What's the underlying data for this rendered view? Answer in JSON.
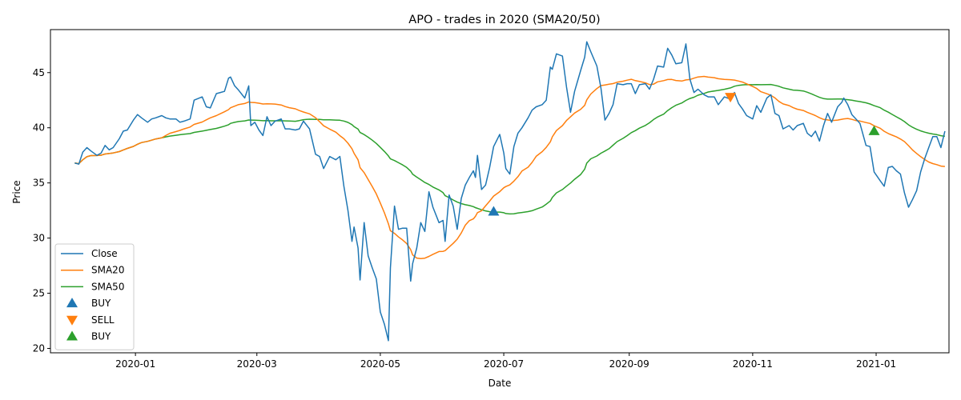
{
  "chart_data": {
    "type": "line",
    "title": "APO - trades in 2020 (SMA20/50)",
    "xlabel": "Date",
    "ylabel": "Price",
    "x_range": [
      "2019-11-20",
      "2021-02-06"
    ],
    "ylim": [
      19.6,
      48.9
    ],
    "x_ticks": [
      {
        "date": "2020-01-01",
        "label": "2020-01"
      },
      {
        "date": "2020-03-01",
        "label": "2020-03"
      },
      {
        "date": "2020-05-01",
        "label": "2020-05"
      },
      {
        "date": "2020-07-01",
        "label": "2020-07"
      },
      {
        "date": "2020-09-01",
        "label": "2020-09"
      },
      {
        "date": "2020-11-01",
        "label": "2020-11"
      },
      {
        "date": "2021-01-01",
        "label": "2021-01"
      }
    ],
    "y_ticks": [
      20,
      25,
      30,
      35,
      40,
      45
    ],
    "grid": false,
    "legend_position": "lower-left",
    "series": [
      {
        "name": "Close",
        "color": "#1f77b4",
        "points": [
          [
            "2019-12-02",
            36.8
          ],
          [
            "2019-12-04",
            36.7
          ],
          [
            "2019-12-06",
            37.8
          ],
          [
            "2019-12-08",
            38.2
          ],
          [
            "2019-12-10",
            37.9
          ],
          [
            "2019-12-13",
            37.5
          ],
          [
            "2019-12-15",
            37.7
          ],
          [
            "2019-12-17",
            38.4
          ],
          [
            "2019-12-19",
            38.0
          ],
          [
            "2019-12-21",
            38.2
          ],
          [
            "2019-12-24",
            39.0
          ],
          [
            "2019-12-26",
            39.7
          ],
          [
            "2019-12-28",
            39.8
          ],
          [
            "2019-12-31",
            40.7
          ],
          [
            "2020-01-02",
            41.2
          ],
          [
            "2020-01-04",
            40.9
          ],
          [
            "2020-01-07",
            40.5
          ],
          [
            "2020-01-09",
            40.8
          ],
          [
            "2020-01-11",
            40.9
          ],
          [
            "2020-01-14",
            41.1
          ],
          [
            "2020-01-16",
            40.9
          ],
          [
            "2020-01-18",
            40.8
          ],
          [
            "2020-01-21",
            40.8
          ],
          [
            "2020-01-23",
            40.5
          ],
          [
            "2020-01-25",
            40.6
          ],
          [
            "2020-01-28",
            40.8
          ],
          [
            "2020-01-30",
            42.5
          ],
          [
            "2020-02-03",
            42.8
          ],
          [
            "2020-02-05",
            41.9
          ],
          [
            "2020-02-07",
            41.8
          ],
          [
            "2020-02-10",
            43.1
          ],
          [
            "2020-02-12",
            43.2
          ],
          [
            "2020-02-14",
            43.3
          ],
          [
            "2020-02-16",
            44.5
          ],
          [
            "2020-02-17",
            44.6
          ],
          [
            "2020-02-19",
            43.8
          ],
          [
            "2020-02-21",
            43.4
          ],
          [
            "2020-02-24",
            42.7
          ],
          [
            "2020-02-26",
            43.8
          ],
          [
            "2020-02-27",
            40.2
          ],
          [
            "2020-02-29",
            40.5
          ],
          [
            "2020-03-02",
            39.8
          ],
          [
            "2020-03-04",
            39.3
          ],
          [
            "2020-03-06",
            41.0
          ],
          [
            "2020-03-08",
            40.2
          ],
          [
            "2020-03-10",
            40.6
          ],
          [
            "2020-03-13",
            40.8
          ],
          [
            "2020-03-15",
            39.9
          ],
          [
            "2020-03-17",
            39.9
          ],
          [
            "2020-03-20",
            39.8
          ],
          [
            "2020-03-22",
            39.9
          ],
          [
            "2020-03-24",
            40.6
          ],
          [
            "2020-03-27",
            39.9
          ],
          [
            "2020-03-30",
            37.6
          ],
          [
            "2020-04-01",
            37.4
          ],
          [
            "2020-04-03",
            36.3
          ],
          [
            "2020-04-06",
            37.4
          ],
          [
            "2020-04-09",
            37.1
          ],
          [
            "2020-04-11",
            37.4
          ],
          [
            "2020-04-13",
            34.7
          ],
          [
            "2020-04-15",
            32.5
          ],
          [
            "2020-04-17",
            29.7
          ],
          [
            "2020-04-18",
            31.0
          ],
          [
            "2020-04-20",
            29.1
          ],
          [
            "2020-04-21",
            26.2
          ],
          [
            "2020-04-23",
            31.4
          ],
          [
            "2020-04-25",
            28.4
          ],
          [
            "2020-04-27",
            27.3
          ],
          [
            "2020-04-29",
            26.3
          ],
          [
            "2020-05-01",
            23.3
          ],
          [
            "2020-05-03",
            22.2
          ],
          [
            "2020-05-05",
            20.7
          ],
          [
            "2020-05-06",
            27.3
          ],
          [
            "2020-05-08",
            32.9
          ],
          [
            "2020-05-10",
            30.8
          ],
          [
            "2020-05-12",
            30.9
          ],
          [
            "2020-05-14",
            30.9
          ],
          [
            "2020-05-16",
            26.1
          ],
          [
            "2020-05-17",
            27.7
          ],
          [
            "2020-05-19",
            29.1
          ],
          [
            "2020-05-21",
            31.4
          ],
          [
            "2020-05-23",
            30.6
          ],
          [
            "2020-05-25",
            34.2
          ],
          [
            "2020-05-27",
            32.8
          ],
          [
            "2020-05-30",
            31.4
          ],
          [
            "2020-06-01",
            31.6
          ],
          [
            "2020-06-02",
            29.7
          ],
          [
            "2020-06-04",
            33.9
          ],
          [
            "2020-06-06",
            32.9
          ],
          [
            "2020-06-08",
            30.8
          ],
          [
            "2020-06-10",
            33.6
          ],
          [
            "2020-06-12",
            34.8
          ],
          [
            "2020-06-14",
            35.5
          ],
          [
            "2020-06-16",
            36.1
          ],
          [
            "2020-06-17",
            35.5
          ],
          [
            "2020-06-18",
            37.5
          ],
          [
            "2020-06-20",
            34.4
          ],
          [
            "2020-06-22",
            34.8
          ],
          [
            "2020-06-24",
            36.4
          ],
          [
            "2020-06-26",
            38.3
          ],
          [
            "2020-06-29",
            39.4
          ],
          [
            "2020-07-01",
            37.7
          ],
          [
            "2020-07-02",
            36.3
          ],
          [
            "2020-07-04",
            35.8
          ],
          [
            "2020-07-06",
            38.3
          ],
          [
            "2020-07-08",
            39.5
          ],
          [
            "2020-07-10",
            40.0
          ],
          [
            "2020-07-13",
            40.9
          ],
          [
            "2020-07-15",
            41.6
          ],
          [
            "2020-07-17",
            41.9
          ],
          [
            "2020-07-20",
            42.1
          ],
          [
            "2020-07-22",
            42.5
          ],
          [
            "2020-07-24",
            45.5
          ],
          [
            "2020-07-25",
            45.3
          ],
          [
            "2020-07-27",
            46.7
          ],
          [
            "2020-07-30",
            46.5
          ],
          [
            "2020-08-01",
            43.7
          ],
          [
            "2020-08-03",
            41.4
          ],
          [
            "2020-08-05",
            43.3
          ],
          [
            "2020-08-08",
            45.2
          ],
          [
            "2020-08-10",
            46.4
          ],
          [
            "2020-08-11",
            47.8
          ],
          [
            "2020-08-13",
            46.9
          ],
          [
            "2020-08-16",
            45.6
          ],
          [
            "2020-08-18",
            43.6
          ],
          [
            "2020-08-20",
            40.7
          ],
          [
            "2020-08-22",
            41.3
          ],
          [
            "2020-08-24",
            42.1
          ],
          [
            "2020-08-26",
            44.0
          ],
          [
            "2020-08-29",
            43.9
          ],
          [
            "2020-08-31",
            44.0
          ],
          [
            "2020-09-02",
            44.0
          ],
          [
            "2020-09-04",
            43.1
          ],
          [
            "2020-09-06",
            43.9
          ],
          [
            "2020-09-09",
            44.0
          ],
          [
            "2020-09-11",
            43.5
          ],
          [
            "2020-09-13",
            44.4
          ],
          [
            "2020-09-15",
            45.6
          ],
          [
            "2020-09-18",
            45.5
          ],
          [
            "2020-09-20",
            47.2
          ],
          [
            "2020-09-22",
            46.6
          ],
          [
            "2020-09-24",
            45.8
          ],
          [
            "2020-09-27",
            45.9
          ],
          [
            "2020-09-29",
            47.6
          ],
          [
            "2020-10-01",
            44.4
          ],
          [
            "2020-10-03",
            43.2
          ],
          [
            "2020-10-05",
            43.5
          ],
          [
            "2020-10-08",
            43.0
          ],
          [
            "2020-10-10",
            42.8
          ],
          [
            "2020-10-13",
            42.8
          ],
          [
            "2020-10-15",
            42.1
          ],
          [
            "2020-10-18",
            42.8
          ],
          [
            "2020-10-21",
            42.6
          ],
          [
            "2020-10-23",
            43.2
          ],
          [
            "2020-10-25",
            42.2
          ],
          [
            "2020-10-27",
            41.7
          ],
          [
            "2020-10-29",
            41.1
          ],
          [
            "2020-11-01",
            40.8
          ],
          [
            "2020-11-03",
            42.0
          ],
          [
            "2020-11-05",
            41.4
          ],
          [
            "2020-11-08",
            42.7
          ],
          [
            "2020-11-10",
            43.0
          ],
          [
            "2020-11-12",
            41.3
          ],
          [
            "2020-11-14",
            41.1
          ],
          [
            "2020-11-16",
            39.9
          ],
          [
            "2020-11-19",
            40.2
          ],
          [
            "2020-11-21",
            39.8
          ],
          [
            "2020-11-23",
            40.2
          ],
          [
            "2020-11-26",
            40.4
          ],
          [
            "2020-11-28",
            39.5
          ],
          [
            "2020-11-30",
            39.2
          ],
          [
            "2020-12-02",
            39.7
          ],
          [
            "2020-12-04",
            38.8
          ],
          [
            "2020-12-06",
            40.2
          ],
          [
            "2020-12-08",
            41.3
          ],
          [
            "2020-12-10",
            40.5
          ],
          [
            "2020-12-13",
            41.9
          ],
          [
            "2020-12-15",
            42.3
          ],
          [
            "2020-12-16",
            42.7
          ],
          [
            "2020-12-18",
            42.1
          ],
          [
            "2020-12-20",
            41.2
          ],
          [
            "2020-12-22",
            40.8
          ],
          [
            "2020-12-24",
            40.4
          ],
          [
            "2020-12-27",
            38.4
          ],
          [
            "2020-12-29",
            38.3
          ],
          [
            "2020-12-31",
            36.0
          ],
          [
            "2021-01-03",
            35.2
          ],
          [
            "2021-01-05",
            34.7
          ],
          [
            "2021-01-07",
            36.4
          ],
          [
            "2021-01-09",
            36.5
          ],
          [
            "2021-01-11",
            36.1
          ],
          [
            "2021-01-13",
            35.8
          ],
          [
            "2021-01-15",
            34.1
          ],
          [
            "2021-01-17",
            32.8
          ],
          [
            "2021-01-19",
            33.5
          ],
          [
            "2021-01-21",
            34.3
          ],
          [
            "2021-01-23",
            36.0
          ],
          [
            "2021-01-25",
            37.2
          ],
          [
            "2021-01-27",
            38.2
          ],
          [
            "2021-01-29",
            39.2
          ],
          [
            "2021-01-31",
            39.2
          ],
          [
            "2021-02-02",
            38.2
          ],
          [
            "2021-02-04",
            39.7
          ]
        ]
      },
      {
        "name": "SMA20",
        "color": "#ff7f0e",
        "points": []
      },
      {
        "name": "SMA50",
        "color": "#2ca02c",
        "points": []
      }
    ],
    "markers": [
      {
        "name": "BUY",
        "date": "2020-06-26",
        "price": 32.4,
        "shape": "triangle-up",
        "color": "#1f77b4"
      },
      {
        "name": "SELL",
        "date": "2020-10-21",
        "price": 42.8,
        "shape": "triangle-down",
        "color": "#ff7f0e"
      },
      {
        "name": "BUY",
        "date": "2020-12-31",
        "price": 39.7,
        "shape": "triangle-up",
        "color": "#2ca02c"
      }
    ]
  }
}
